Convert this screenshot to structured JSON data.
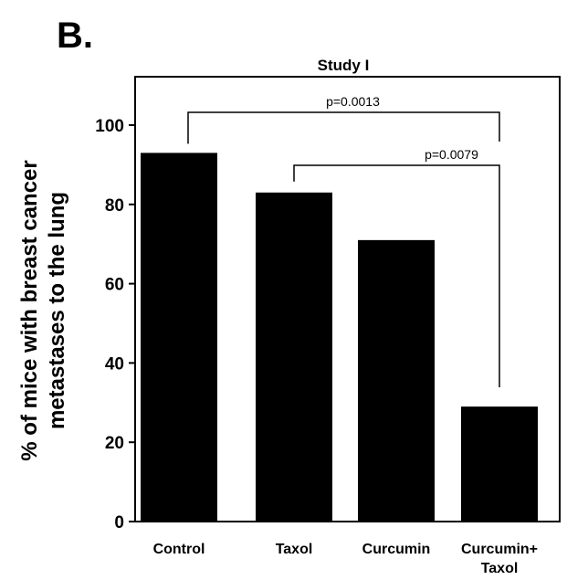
{
  "panel_label": "B.",
  "chart_data": {
    "type": "bar",
    "title": "Study  I",
    "xlabel": "",
    "ylabel_lines": [
      "% of mice with breast cancer",
      "metastases to the lung"
    ],
    "categories": [
      [
        "Control"
      ],
      [
        "Taxol"
      ],
      [
        "Curcumin"
      ],
      [
        "Curcumin+",
        "Taxol"
      ]
    ],
    "values": [
      93,
      83,
      71,
      29
    ],
    "ylim": [
      0,
      100
    ],
    "yticks": [
      0,
      20,
      40,
      60,
      80,
      100
    ],
    "bar_color": "#000000",
    "grid": false,
    "significance": [
      {
        "from": 0,
        "to": 3,
        "label": "p=0.0013"
      },
      {
        "from": 1,
        "to": 3,
        "label": "p=0.0079"
      }
    ]
  }
}
